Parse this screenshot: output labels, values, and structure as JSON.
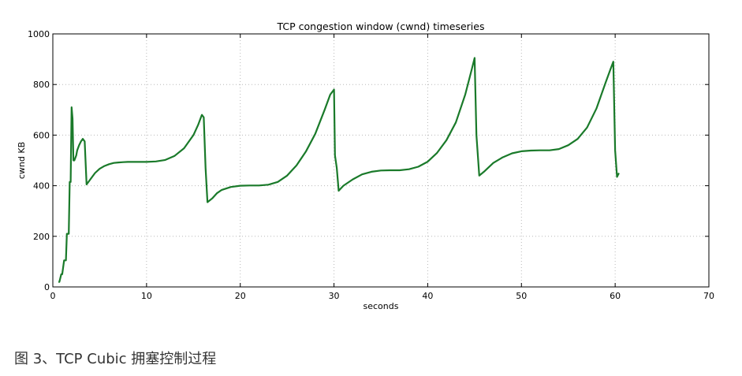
{
  "caption": "图 3、TCP Cubic 拥塞控制过程",
  "chart_data": {
    "type": "line",
    "title": "TCP congestion window (cwnd) timeseries",
    "xlabel": "seconds",
    "ylabel": "cwnd KB",
    "xlim": [
      0,
      70
    ],
    "ylim": [
      0,
      1000
    ],
    "xticks": [
      0,
      10,
      20,
      30,
      40,
      50,
      60,
      70
    ],
    "yticks": [
      0,
      200,
      400,
      600,
      800,
      1000
    ],
    "grid": true,
    "grid_style": "dotted",
    "line_color": "#1a7a2a",
    "series": [
      {
        "name": "",
        "x": [
          0.6,
          0.7,
          0.9,
          1.0,
          1.2,
          1.4,
          1.5,
          1.7,
          1.8,
          1.9,
          2.0,
          2.1,
          2.2,
          2.3,
          2.5,
          2.6,
          2.8,
          3.0,
          3.2,
          3.4,
          3.6,
          3.7,
          4.0,
          4.5,
          5.0,
          5.5,
          6.0,
          6.5,
          7.0,
          7.5,
          8.0,
          9.0,
          10.0,
          11.0,
          12.0,
          13.0,
          14.0,
          15.0,
          15.5,
          15.9,
          16.1,
          16.3,
          16.5,
          17.0,
          17.5,
          18.0,
          19.0,
          20.0,
          21.0,
          22.0,
          23.0,
          24.0,
          25.0,
          26.0,
          27.0,
          28.0,
          29.0,
          29.6,
          30.0,
          30.1,
          30.3,
          30.5,
          31.0,
          32.0,
          33.0,
          34.0,
          35.0,
          36.0,
          37.0,
          38.0,
          39.0,
          40.0,
          41.0,
          42.0,
          43.0,
          44.0,
          44.7,
          45.0,
          45.2,
          45.5,
          46.0,
          47.0,
          48.0,
          49.0,
          50.0,
          51.0,
          52.0,
          53.0,
          54.0,
          55.0,
          56.0,
          57.0,
          58.0,
          59.0,
          59.5,
          59.8,
          60.0,
          60.2,
          60.4
        ],
        "y": [
          20,
          20,
          50,
          50,
          105,
          105,
          210,
          210,
          415,
          415,
          710,
          665,
          500,
          500,
          520,
          540,
          560,
          575,
          585,
          575,
          405,
          410,
          425,
          450,
          467,
          478,
          485,
          490,
          492,
          493,
          494,
          494,
          494,
          496,
          502,
          518,
          548,
          600,
          640,
          680,
          670,
          470,
          335,
          350,
          370,
          383,
          395,
          400,
          401,
          401,
          404,
          415,
          440,
          480,
          535,
          605,
          700,
          760,
          780,
          520,
          470,
          380,
          400,
          425,
          445,
          455,
          460,
          461,
          461,
          465,
          475,
          495,
          530,
          580,
          650,
          760,
          860,
          905,
          600,
          440,
          455,
          490,
          512,
          528,
          536,
          539,
          540,
          540,
          545,
          560,
          585,
          630,
          705,
          810,
          860,
          890,
          540,
          435,
          450
        ]
      }
    ]
  }
}
